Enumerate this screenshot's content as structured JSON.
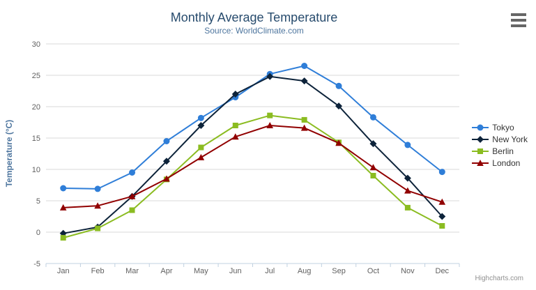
{
  "header": {
    "title": "Monthly Average Temperature",
    "subtitle": "Source: WorldClimate.com"
  },
  "credits": {
    "label": "Highcharts.com"
  },
  "chart_data": {
    "type": "line",
    "title": "Monthly Average Temperature",
    "subtitle": "Source: WorldClimate.com",
    "categories": [
      "Jan",
      "Feb",
      "Mar",
      "Apr",
      "May",
      "Jun",
      "Jul",
      "Aug",
      "Sep",
      "Oct",
      "Nov",
      "Dec"
    ],
    "xlabel": "",
    "ylabel": "Temperature (°C)",
    "ylim": [
      -5,
      30
    ],
    "y_ticks": [
      30,
      25,
      20,
      15,
      10,
      5,
      0,
      -5
    ],
    "grid": true,
    "legend_position": "right",
    "series": [
      {
        "name": "Tokyo",
        "color": "#2f7ed8",
        "marker": "circle",
        "values": [
          7.0,
          6.9,
          9.5,
          14.5,
          18.2,
          21.5,
          25.2,
          26.5,
          23.3,
          18.3,
          13.9,
          9.6
        ]
      },
      {
        "name": "New York",
        "color": "#0d233a",
        "marker": "diamond",
        "values": [
          -0.2,
          0.8,
          5.7,
          11.3,
          17.0,
          22.0,
          24.8,
          24.1,
          20.1,
          14.1,
          8.6,
          2.5
        ]
      },
      {
        "name": "Berlin",
        "color": "#8bbc21",
        "marker": "square",
        "values": [
          -0.9,
          0.6,
          3.5,
          8.4,
          13.5,
          17.0,
          18.6,
          17.9,
          14.3,
          9.0,
          3.9,
          1.0
        ]
      },
      {
        "name": "London",
        "color": "#910000",
        "marker": "triangle",
        "values": [
          3.9,
          4.2,
          5.7,
          8.5,
          11.9,
          15.2,
          17.0,
          16.6,
          14.2,
          10.3,
          6.6,
          4.8
        ]
      }
    ]
  },
  "colors": {
    "title": "#274b6d",
    "subtitle": "#4d759e",
    "axis_title": "#4d759e",
    "axis_labels": "#606060",
    "grid": "#d8d8d8",
    "axis_line": "#c0d0e0",
    "legend_text": "#333333",
    "credits": "#909090",
    "menu_icon": "#666666",
    "background": "#ffffff"
  }
}
